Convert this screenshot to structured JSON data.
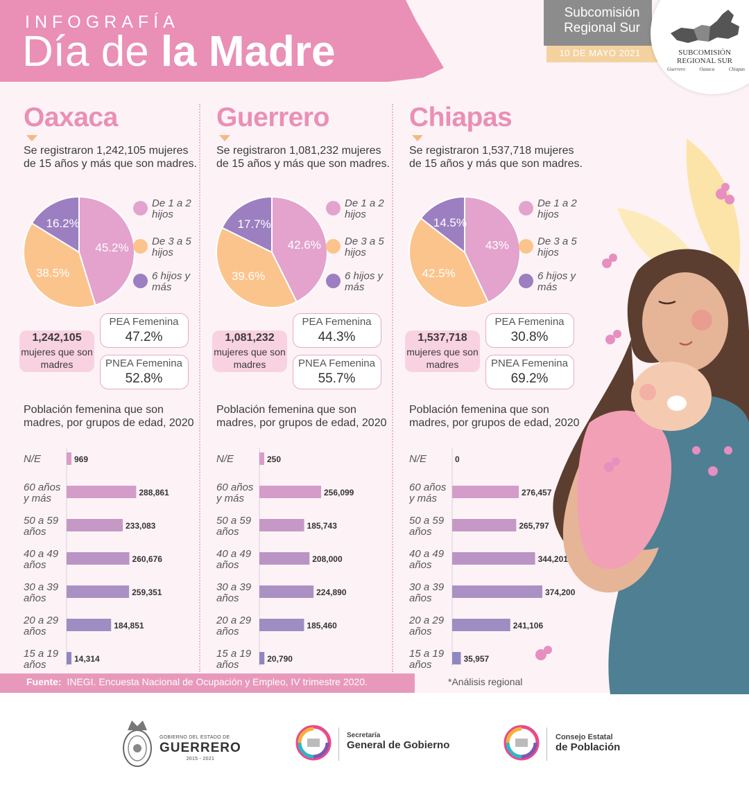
{
  "header": {
    "subtitle": "INFOGRAFÍA",
    "title_light": "Día de",
    "title_bold": "la Madre",
    "subcomision": "Subcomisión Regional Sur",
    "date": "10 DE MAYO 2021",
    "logo_name": "SUBCOMISIÓN REGIONAL SUR",
    "logo_states": [
      "Guerrero",
      "Oaxaca",
      "Chiapas"
    ]
  },
  "legend": [
    {
      "label": "De 1 a 2 hijos",
      "color": "#e3a3cd"
    },
    {
      "label": "De 3 a 5 hijos",
      "color": "#fbc48c"
    },
    {
      "label": "6 hijos y más",
      "color": "#9b7fc0"
    }
  ],
  "labels": {
    "mothers": "mujeres que son madres",
    "pea": "PEA Femenina",
    "pnea": "PNEA Femenina",
    "bars_title": "Población femenina que son madres, por grupos de edad, 2020"
  },
  "states": [
    {
      "name": "Oaxaca",
      "description": "Se registraron 1,242,105 mujeres de 15 años y más que son madres.",
      "mothers": "1,242,105",
      "pea": "47.2%",
      "pnea": "52.8%"
    },
    {
      "name": "Guerrero",
      "description": "Se registraron 1,081,232 mujeres de 15 años y más que son madres.",
      "mothers": "1,081,232",
      "pea": "44.3%",
      "pnea": "55.7%"
    },
    {
      "name": "Chiapas",
      "description": "Se registraron 1,537,718 mujeres de 15 años y más que son madres.",
      "mothers": "1,537,718",
      "pea": "30.8%",
      "pnea": "69.2%"
    }
  ],
  "chart_data": [
    {
      "type": "pie",
      "categories": [
        "De 1 a 2 hijos",
        "De 3 a 5 hijos",
        "6 hijos y más"
      ],
      "values": [
        45.2,
        38.5,
        16.2
      ],
      "value_labels": [
        "45.2%",
        "38.5%",
        "16.2%"
      ]
    },
    {
      "type": "bar",
      "title": "Población femenina que son madres, por grupos de edad, 2020",
      "categories": [
        "N/E",
        "60 años y más",
        "50 a 59 años",
        "40 a 49 años",
        "30 a 39 años",
        "20 a 29 años",
        "15 a 19 años"
      ],
      "values": [
        969,
        288861,
        233083,
        260676,
        259351,
        184851,
        14314
      ],
      "value_labels": [
        "969",
        "288,861",
        "233,083",
        "260,676",
        "259,351",
        "184,851",
        "14,314"
      ]
    },
    {
      "type": "pie",
      "categories": [
        "De 1 a 2 hijos",
        "De 3 a 5 hijos",
        "6 hijos y más"
      ],
      "values": [
        42.6,
        39.6,
        17.7
      ],
      "value_labels": [
        "42.6%",
        "39.6%",
        "17.7%"
      ]
    },
    {
      "type": "bar",
      "title": "Población femenina que son madres, por grupos de edad, 2020",
      "categories": [
        "N/E",
        "60 años y más",
        "50 a 59 años",
        "40 a 49 años",
        "30 a 39 años",
        "20 a 29 años",
        "15 a 19 años"
      ],
      "values": [
        250,
        256099,
        185743,
        208000,
        224890,
        185460,
        20790
      ],
      "value_labels": [
        "250",
        "256,099",
        "185,743",
        "208,000",
        "224,890",
        "185,460",
        "20,790"
      ]
    },
    {
      "type": "pie",
      "categories": [
        "De 1 a 2 hijos",
        "De 3 a 5 hijos",
        "6 hijos y más"
      ],
      "values": [
        43,
        42.5,
        14.5
      ],
      "value_labels": [
        "43%",
        "42.5%",
        "14.5%"
      ]
    },
    {
      "type": "bar",
      "title": "Población femenina que son madres, por grupos de edad, 2020",
      "categories": [
        "N/E",
        "60 años y más",
        "50 a 59 años",
        "40 a 49 años",
        "30 a 39 años",
        "20 a 29 años",
        "15 a 19 años"
      ],
      "values": [
        0,
        276457,
        265797,
        344201,
        374200,
        241106,
        35957
      ],
      "value_labels": [
        "0",
        "276,457",
        "265,797",
        "344,201",
        "374,200",
        "241,106",
        "35,957"
      ]
    }
  ],
  "age_groups": [
    [
      "N/E",
      ""
    ],
    [
      "60 años",
      "y más"
    ],
    [
      "50 a 59",
      "años"
    ],
    [
      "40 a 49",
      "años"
    ],
    [
      "30 a 39",
      "años"
    ],
    [
      "20 a 29",
      "años"
    ],
    [
      "15 a 19",
      "años"
    ]
  ],
  "bar_colors": [
    "#d79ec9",
    "#d49cc8",
    "#c698c6",
    "#b994c5",
    "#ab90c4",
    "#9d8dc2",
    "#8f88c0"
  ],
  "footer": {
    "source_label": "Fuente:",
    "source_text": "INEGI. Encuesta Nacional de Ocupación y Empleo, IV trimestre 2020.",
    "note": "*Análisis regional"
  },
  "logos": {
    "gov_small": "GOBIERNO DEL ESTADO DE",
    "gov_big": "GUERRERO",
    "gov_years": "2015 - 2021",
    "sgg_small": "Secretaría",
    "sgg_big": "General de Gobierno",
    "cep_small": "Consejo Estatal",
    "cep_big": "de Población"
  }
}
